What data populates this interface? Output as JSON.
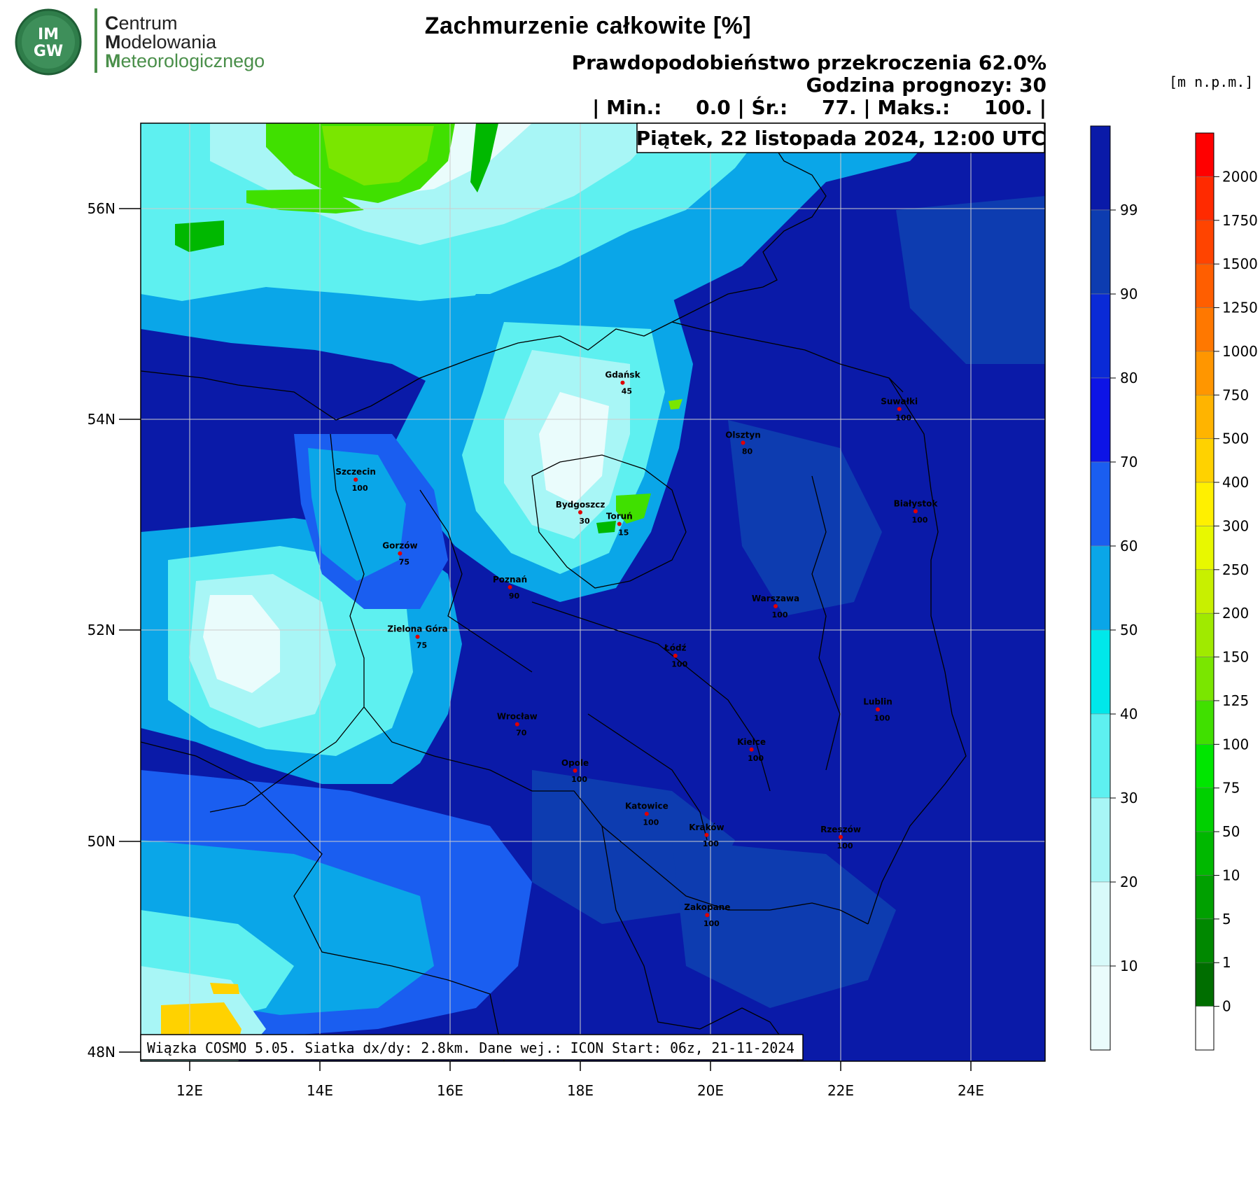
{
  "logo": {
    "badge_lines": [
      "IM",
      "GW"
    ],
    "lines": [
      {
        "first": "C",
        "rest": "entrum"
      },
      {
        "first": "M",
        "rest": "odelowania"
      },
      {
        "first": "M",
        "rest": "eteorologicznego"
      }
    ]
  },
  "header": {
    "title": "Zachmurzenie całkowite [%]",
    "probability": "Prawdopodobieństwo przekroczenia 62.0%",
    "forecast_hour": "Godzina prognozy: 30",
    "stats": "| Min.:     0.0 | Śr.:     77. | Maks.:     100. |",
    "date": "Piątek, 22 listopada 2024, 12:00 UTC"
  },
  "footer_info": "Wiązka COSMO 5.05. Siatka dx/dy: 2.8km. Dane wej.: ICON Start: 06z, 21-11-2024",
  "map": {
    "lat_labels": [
      "56N",
      "54N",
      "52N",
      "50N",
      "48N"
    ],
    "lon_labels": [
      "12E",
      "14E",
      "16E",
      "18E",
      "20E",
      "22E",
      "24E"
    ],
    "cities": [
      {
        "name": "Gdańsk",
        "value": "45",
        "lon": 18.65,
        "lat": 54.35
      },
      {
        "name": "Suwałki",
        "value": "100",
        "lon": 22.9,
        "lat": 54.1
      },
      {
        "name": "Olsztyn",
        "value": "80",
        "lon": 20.5,
        "lat": 53.78
      },
      {
        "name": "Szczecin",
        "value": "100",
        "lon": 14.55,
        "lat": 53.43
      },
      {
        "name": "Białystok",
        "value": "100",
        "lon": 23.15,
        "lat": 53.13
      },
      {
        "name": "Bydgoszcz",
        "value": "30",
        "lon": 18.0,
        "lat": 53.12
      },
      {
        "name": "Toruń",
        "value": "15",
        "lon": 18.6,
        "lat": 53.01
      },
      {
        "name": "Gorzów",
        "value": "75",
        "lon": 15.23,
        "lat": 52.73
      },
      {
        "name": "Poznań",
        "value": "90",
        "lon": 16.92,
        "lat": 52.41
      },
      {
        "name": "Warszawa",
        "value": "100",
        "lon": 21.0,
        "lat": 52.23
      },
      {
        "name": "Zielona Góra",
        "value": "75",
        "lon": 15.5,
        "lat": 51.94
      },
      {
        "name": "Łódź",
        "value": "100",
        "lon": 19.46,
        "lat": 51.76
      },
      {
        "name": "Lublin",
        "value": "100",
        "lon": 22.57,
        "lat": 51.25
      },
      {
        "name": "Wrocław",
        "value": "70",
        "lon": 17.03,
        "lat": 51.11
      },
      {
        "name": "Kielce",
        "value": "100",
        "lon": 20.63,
        "lat": 50.87
      },
      {
        "name": "Opole",
        "value": "100",
        "lon": 17.92,
        "lat": 50.67
      },
      {
        "name": "Katowice",
        "value": "100",
        "lon": 19.02,
        "lat": 50.26
      },
      {
        "name": "Kraków",
        "value": "100",
        "lon": 19.94,
        "lat": 50.06
      },
      {
        "name": "Rzeszów",
        "value": "100",
        "lon": 22.0,
        "lat": 50.04
      },
      {
        "name": "Zakopane",
        "value": "100",
        "lon": 19.95,
        "lat": 49.3
      }
    ]
  },
  "cloud_scale": {
    "labels": [
      "99",
      "90",
      "80",
      "70",
      "60",
      "50",
      "40",
      "30",
      "20",
      "10"
    ],
    "colors": [
      "#0a1aa8",
      "#0d3cb0",
      "#0a2ad6",
      "#0d14e6",
      "#1a5ef0",
      "#0aa6e8",
      "#00e8ea",
      "#5ef0f0",
      "#a8f6f6",
      "#d8fafa",
      "#eafcfc"
    ]
  },
  "terrain_scale": {
    "unit": "[m n.p.m.]",
    "labels": [
      "2000",
      "1750",
      "1500",
      "1250",
      "1000",
      "750",
      "500",
      "400",
      "300",
      "250",
      "200",
      "150",
      "125",
      "100",
      "75",
      "50",
      "10",
      "5",
      "1",
      "0"
    ],
    "colors": [
      "#ff0000",
      "#ff2a00",
      "#ff4400",
      "#ff5e00",
      "#ff7800",
      "#ff9600",
      "#ffb400",
      "#ffd200",
      "#fff000",
      "#e8f800",
      "#c8f000",
      "#a0ea00",
      "#7ae600",
      "#40e000",
      "#00e600",
      "#00d000",
      "#00b800",
      "#00a000",
      "#008800",
      "#006e00",
      "#ffffff"
    ]
  }
}
